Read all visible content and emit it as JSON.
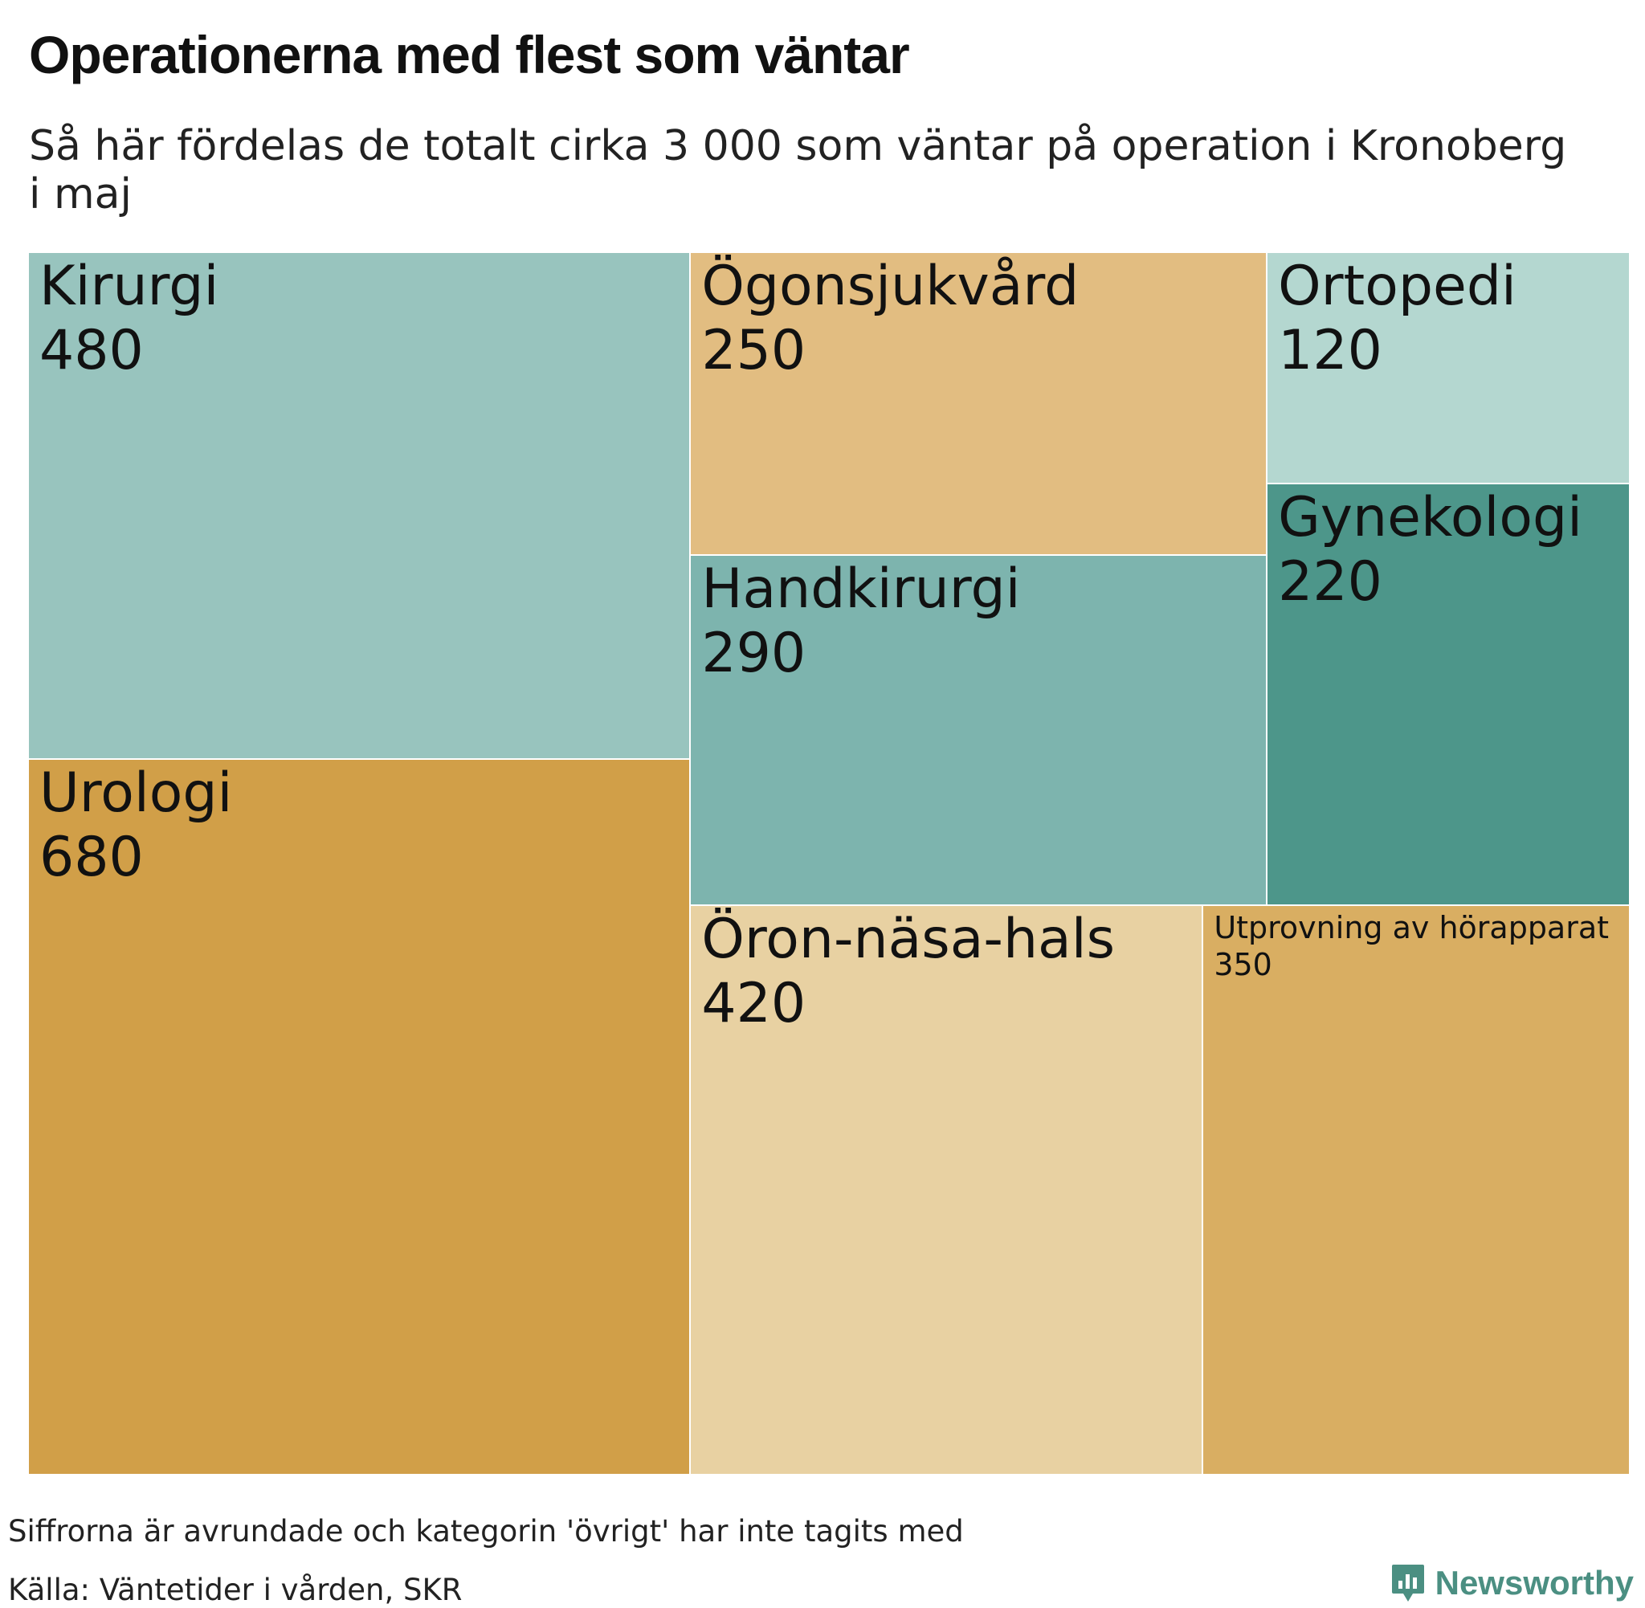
{
  "title": "Operationerna med flest som väntar",
  "subtitle": "Så här fördelas de totalt cirka 3 000 som väntar på operation i Kronoberg i maj",
  "footer": {
    "note": "Siffrorna är avrundade och kategorin 'övrigt' har inte tagits med",
    "source": "Källa: Väntetider i vården, SKR",
    "brand": "Newsworthy",
    "brand_icon": "newsworthy-logo-icon"
  },
  "chart_data": {
    "type": "treemap",
    "title": "Operationerna med flest som väntar",
    "subtitle": "Så här fördelas de totalt cirka 3 000 som väntar på operation i Kronoberg i maj",
    "items": [
      {
        "name": "Urologi",
        "value": 680,
        "color": "#d19f48"
      },
      {
        "name": "Kirurgi",
        "value": 480,
        "color": "#98c4be"
      },
      {
        "name": "Öron-näsa-hals",
        "value": 420,
        "color": "#e8d1a2"
      },
      {
        "name": "Utprovning av hörapparat",
        "value": 350,
        "color": "#d9ae62"
      },
      {
        "name": "Handkirurgi",
        "value": 290,
        "color": "#7db4ae"
      },
      {
        "name": "Ögonsjukvård",
        "value": 250,
        "color": "#e2bd81"
      },
      {
        "name": "Gynekologi",
        "value": 220,
        "color": "#4d968a"
      },
      {
        "name": "Ortopedi",
        "value": 120,
        "color": "#b4d7d0"
      }
    ]
  }
}
